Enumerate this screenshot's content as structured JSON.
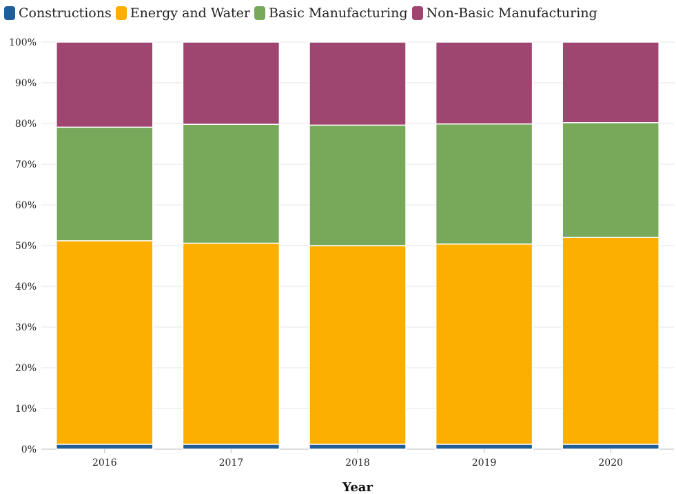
{
  "chart_data": {
    "type": "bar",
    "stacked": true,
    "normalized": true,
    "categories": [
      "2016",
      "2017",
      "2018",
      "2019",
      "2020"
    ],
    "series": [
      {
        "name": "Constructions",
        "color": "#1f5e99",
        "values": [
          1.2,
          1.2,
          1.2,
          1.2,
          1.2
        ]
      },
      {
        "name": "Energy and Water",
        "color": "#fcaf00",
        "values": [
          50.0,
          49.4,
          48.8,
          49.2,
          50.8
        ]
      },
      {
        "name": "Basic Manufacturing",
        "color": "#78a85a",
        "values": [
          27.9,
          29.2,
          29.6,
          29.5,
          28.2
        ]
      },
      {
        "name": "Non-Basic Manufacturing",
        "color": "#9e4570",
        "values": [
          20.9,
          20.2,
          20.4,
          20.1,
          19.8
        ]
      }
    ],
    "xlabel": "Year",
    "ylabel": "",
    "ylim": [
      0,
      100
    ],
    "yticks": [
      "0%",
      "10%",
      "20%",
      "30%",
      "40%",
      "50%",
      "60%",
      "70%",
      "80%",
      "90%",
      "100%"
    ],
    "grid": true,
    "legend_position": "top-left"
  }
}
